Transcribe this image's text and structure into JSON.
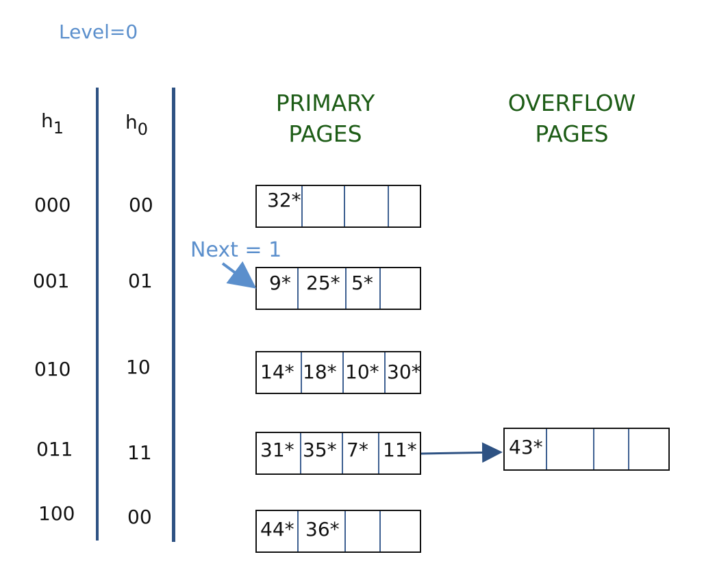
{
  "level_label": "Level=0",
  "headers": {
    "h1": {
      "base": "h",
      "sub": "1"
    },
    "h0": {
      "base": "h",
      "sub": "0"
    }
  },
  "titles": {
    "primary": [
      "PRIMARY",
      "PAGES"
    ],
    "overflow": [
      "OVERFLOW",
      "PAGES"
    ]
  },
  "next_label": "Next = 1",
  "rows": [
    {
      "h1": "000",
      "h0": "00",
      "entries": [
        "32*",
        "",
        "",
        ""
      ],
      "overflow": null
    },
    {
      "h1": "001",
      "h0": "01",
      "entries": [
        "9*",
        "25*",
        "5*",
        ""
      ],
      "overflow": null
    },
    {
      "h1": "010",
      "h0": "10",
      "entries": [
        "14*",
        "18*",
        "10*",
        "30*"
      ],
      "overflow": null
    },
    {
      "h1": "011",
      "h0": "11",
      "entries": [
        "31*",
        "35*",
        "7*",
        "11*"
      ],
      "overflow": {
        "entries": [
          "43*",
          "",
          "",
          ""
        ]
      }
    },
    {
      "h1": "100",
      "h0": "00",
      "entries": [
        "44*",
        "36*",
        "",
        ""
      ],
      "overflow": null
    }
  ],
  "colors": {
    "line": "#2e5283",
    "accent": "#5b8fcc",
    "title": "#1d5c16"
  }
}
